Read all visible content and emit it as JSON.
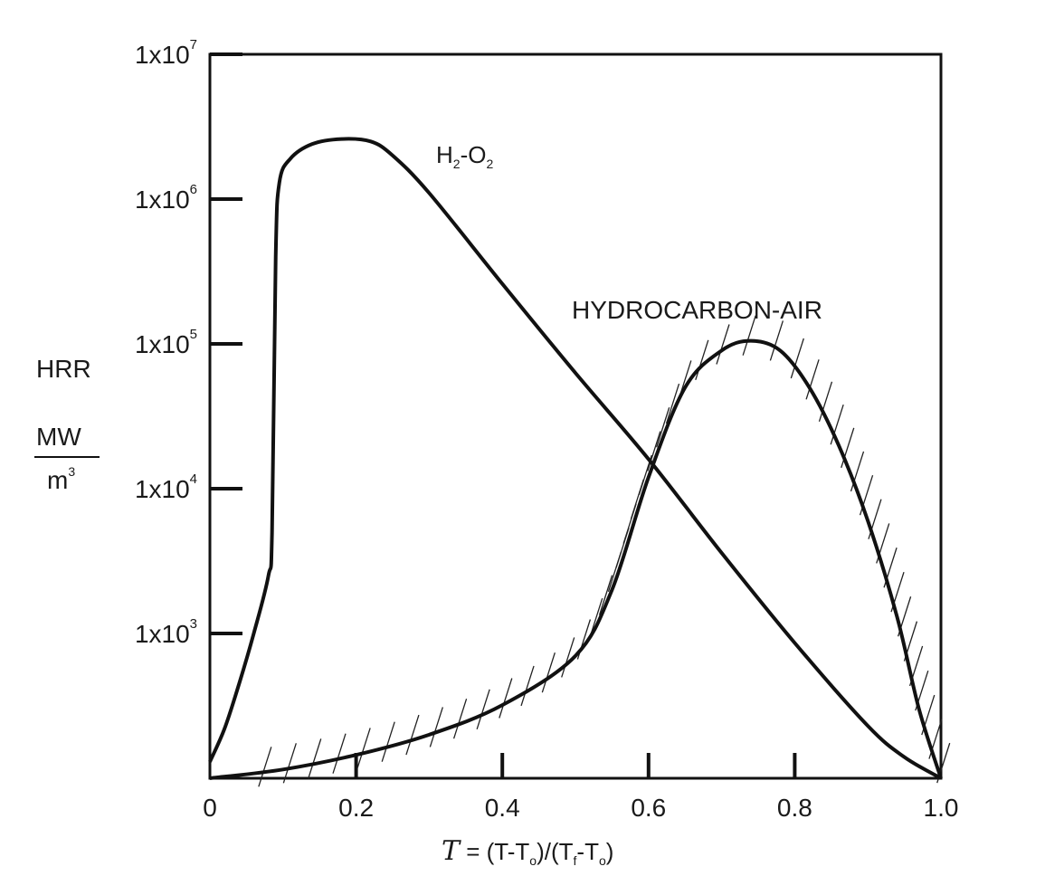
{
  "chart_data": {
    "type": "line",
    "yscale": "log",
    "xlim": [
      0,
      1.0
    ],
    "ylim": [
      100,
      10000000
    ],
    "x_ticks": [
      "0",
      "0.2",
      "0.4",
      "0.6",
      "0.8",
      "1.0"
    ],
    "y_ticks": [
      {
        "value": 1000,
        "base": "1x10",
        "exp": "3"
      },
      {
        "value": 10000,
        "base": "1x10",
        "exp": "4"
      },
      {
        "value": 100000,
        "base": "1x10",
        "exp": "5"
      },
      {
        "value": 1000000,
        "base": "1x10",
        "exp": "6"
      },
      {
        "value": 10000000,
        "base": "1x10",
        "exp": "7"
      }
    ],
    "ylabel": {
      "line1": "HRR",
      "numerator": "MW",
      "denominator": "m",
      "denominator_exp": "3"
    },
    "xlabel": {
      "symbol": "T",
      "eq": " = (T-T",
      "sub1": "o",
      "mid": ")/(T",
      "sub2": "f",
      "dash": "-T",
      "sub3": "o",
      "close": ")"
    },
    "series": [
      {
        "name": "H2-O2",
        "label": {
          "a": "H",
          "a_sub": "2",
          "dash": "-O",
          "b_sub": "2"
        },
        "color": "#111111",
        "x": [
          0.0,
          0.02,
          0.04,
          0.06,
          0.08,
          0.085,
          0.09,
          0.095,
          0.11,
          0.14,
          0.18,
          0.22,
          0.25,
          0.3,
          0.4,
          0.5,
          0.6,
          0.7,
          0.8,
          0.9,
          0.95,
          1.0
        ],
        "y": [
          130,
          220,
          450,
          1000,
          2500,
          5000,
          400000,
          1300000,
          1900000,
          2400000,
          2600000,
          2500000,
          2000000,
          1100000,
          260000,
          63000,
          16000,
          3600,
          860,
          230,
          140,
          100
        ]
      },
      {
        "name": "HYDROCARBON-AIR",
        "label": {
          "text": "HYDROCARBON-AIR"
        },
        "color": "#111111",
        "x": [
          0.0,
          0.1,
          0.2,
          0.3,
          0.4,
          0.5,
          0.55,
          0.6,
          0.65,
          0.7,
          0.74,
          0.78,
          0.82,
          0.86,
          0.9,
          0.94,
          0.97,
          1.0
        ],
        "y": [
          100,
          115,
          145,
          200,
          320,
          700,
          2000,
          12000,
          50000,
          90000,
          105000,
          90000,
          50000,
          20000,
          6000,
          1300,
          300,
          100
        ]
      }
    ],
    "hatched_series": "HYDROCARBON-AIR",
    "grid": false
  }
}
